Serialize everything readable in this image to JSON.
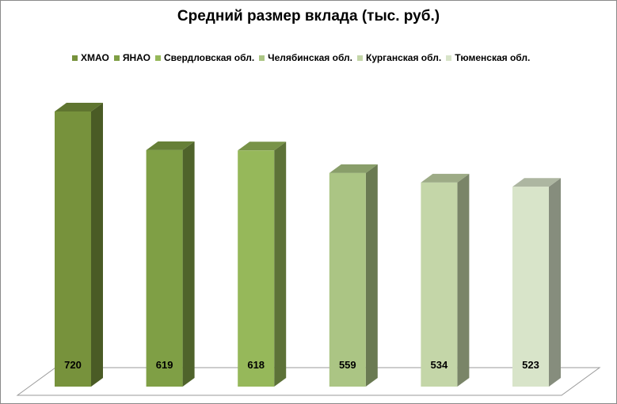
{
  "chart_data": {
    "type": "bar",
    "title": "Средний размер вклада (тыс. руб.)",
    "categories": [
      "ХМАО",
      "ЯНАО",
      "Свердловская обл.",
      "Челябинская обл.",
      "Курганская обл.",
      "Тюменская обл."
    ],
    "values": [
      720,
      619,
      618,
      559,
      534,
      523
    ],
    "colors": [
      "#77923c",
      "#7f9f45",
      "#96b85a",
      "#abc584",
      "#c4d6a8",
      "#d8e4c9"
    ],
    "legend_position": "top",
    "grid": false,
    "style": "3d-column"
  }
}
